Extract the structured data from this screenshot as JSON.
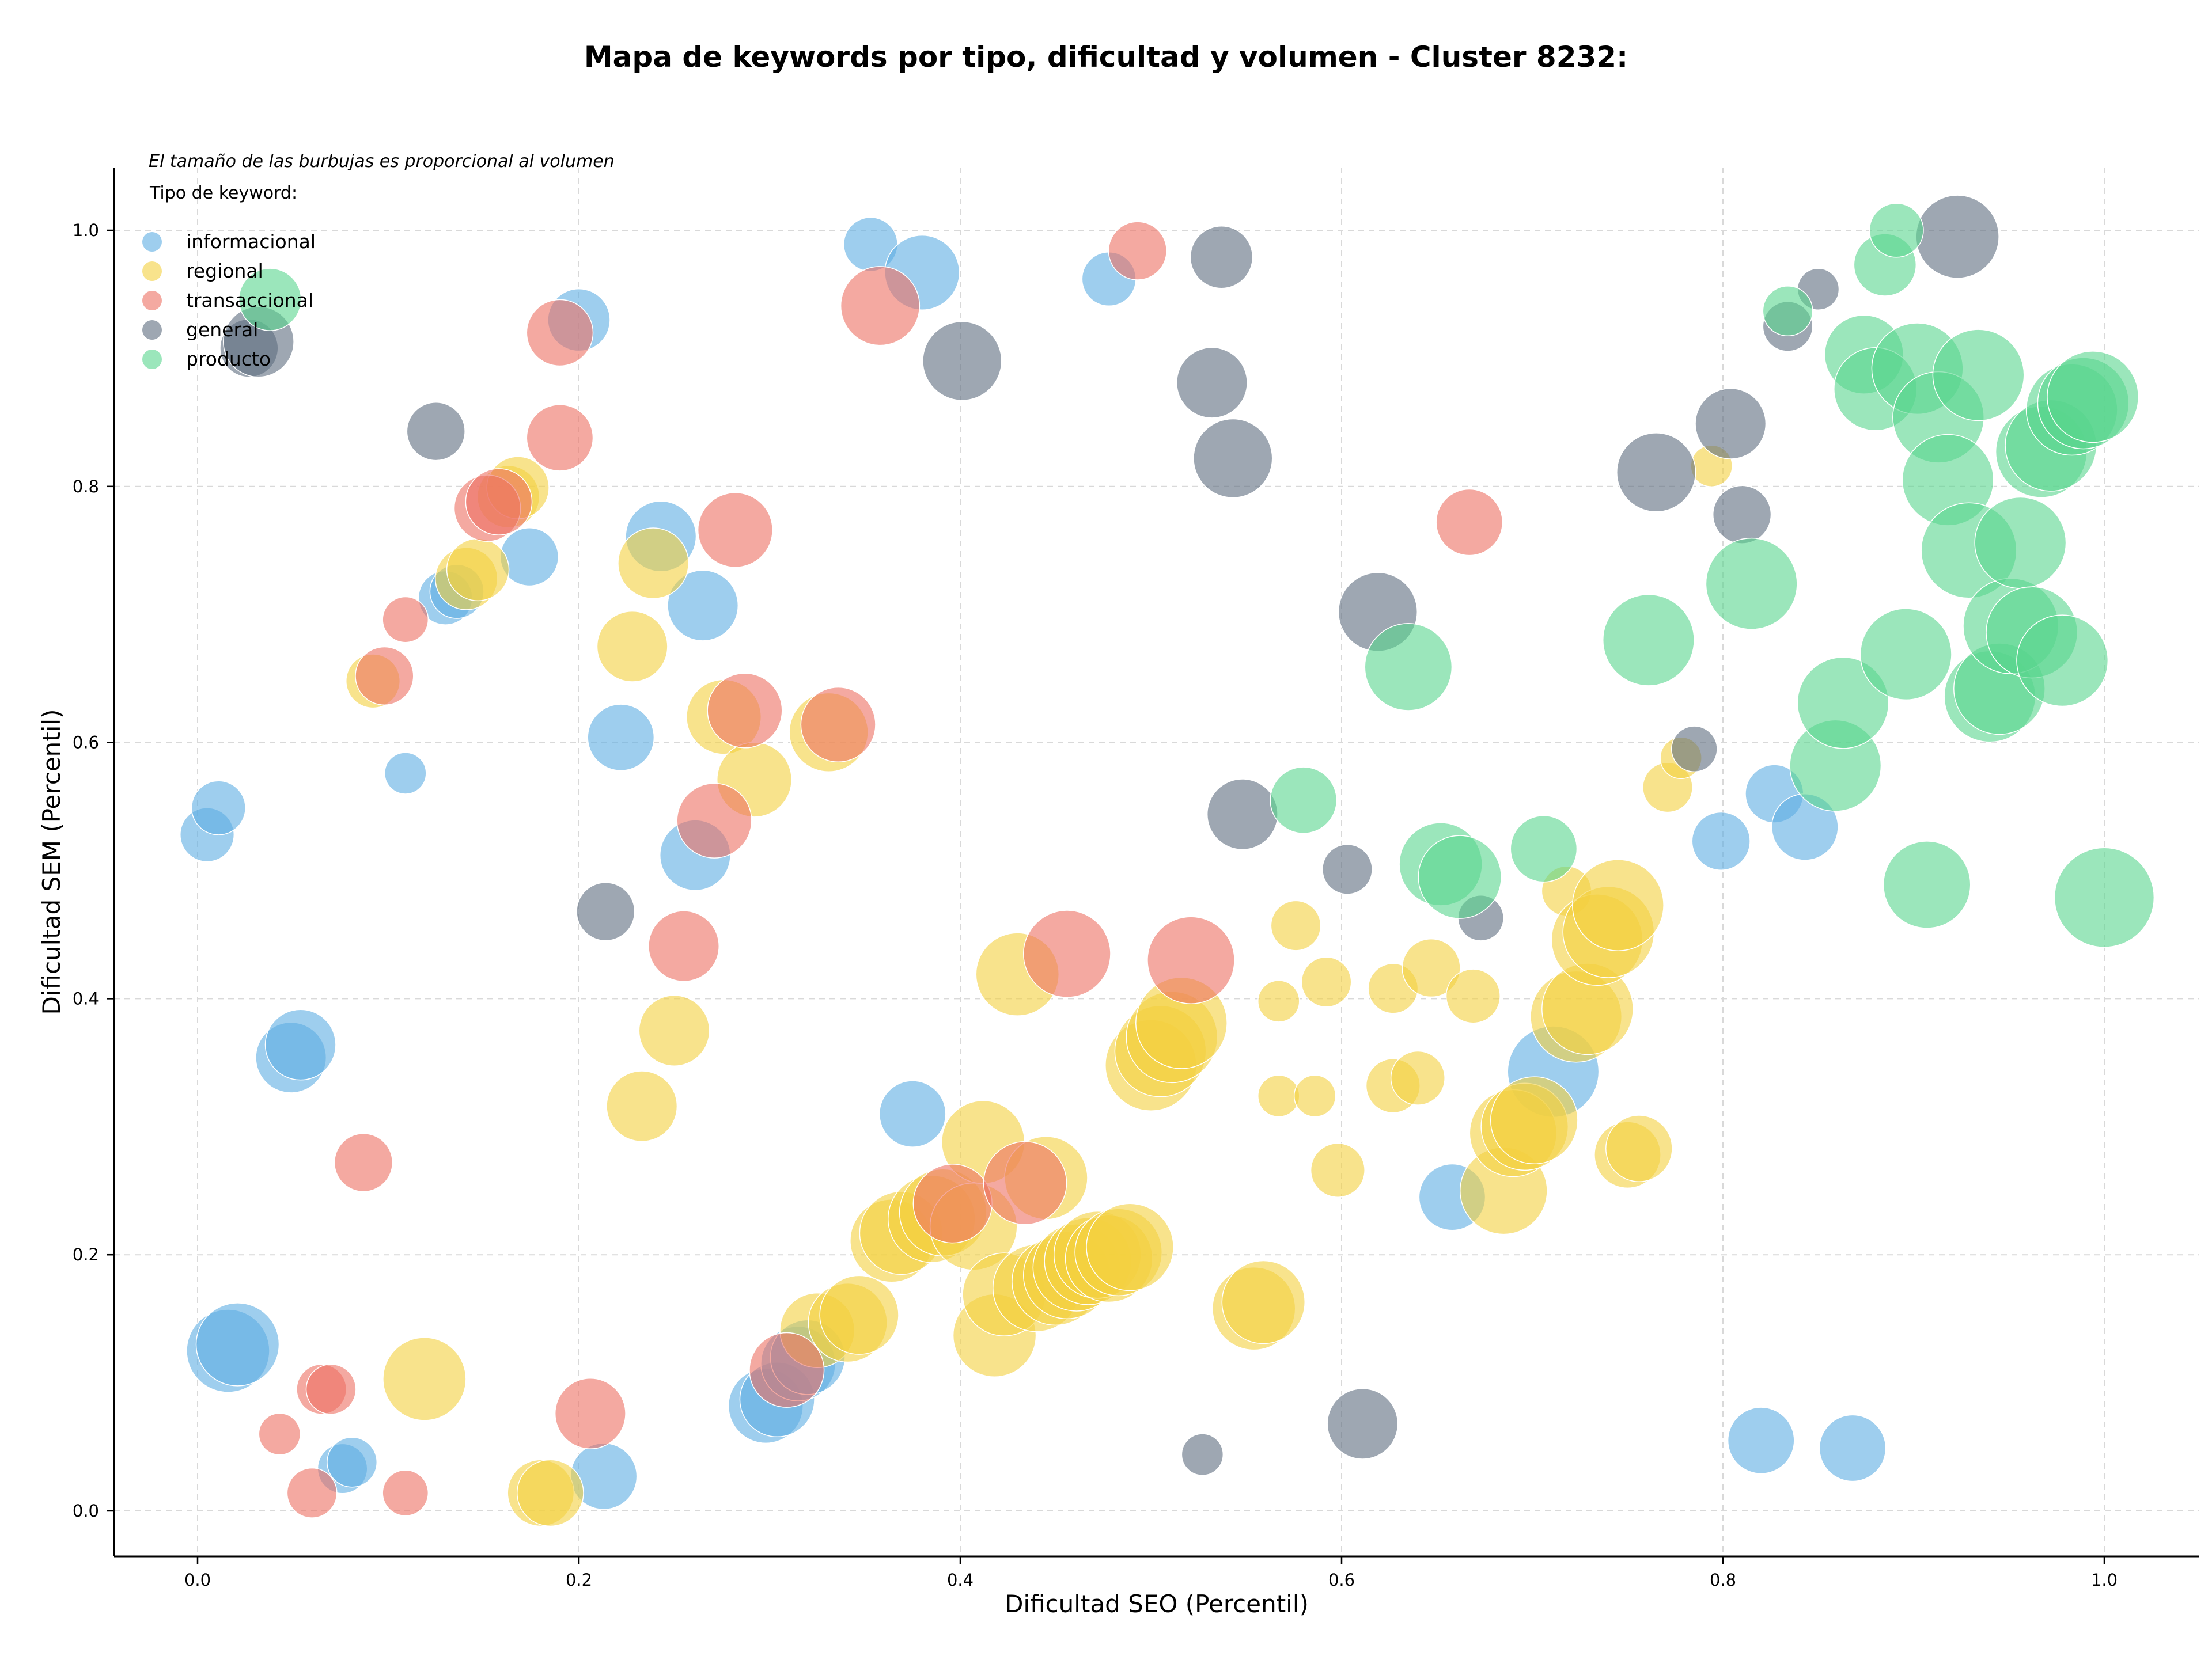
{
  "chart_data": {
    "type": "scatter",
    "title": "Mapa de keywords por tipo, dificultad y volumen - Cluster 8232:",
    "subtitle": "El tamaño de las burbujas es proporcional al volumen",
    "xlabel": "Dificultad SEO (Percentil)",
    "ylabel": "Dificultad SEM (Percentil)",
    "xlim": [
      -0.045,
      1.05
    ],
    "ylim": [
      -0.035,
      1.05
    ],
    "xticks": [
      "0.0",
      "0.2",
      "0.4",
      "0.6",
      "0.8",
      "1.0"
    ],
    "yticks": [
      "0.0",
      "0.2",
      "0.4",
      "0.6",
      "0.8",
      "1.0"
    ],
    "grid": true,
    "legend_title": "Tipo de keyword:",
    "legend_position": "top-left",
    "series": [
      {
        "name": "informacional",
        "color": "#5dade2",
        "points": [
          [
            0.005,
            0.528,
            0.4
          ],
          [
            0.011,
            0.549,
            0.4
          ],
          [
            0.016,
            0.125,
            0.75
          ],
          [
            0.021,
            0.13,
            0.75
          ],
          [
            0.049,
            0.354,
            0.6
          ],
          [
            0.054,
            0.364,
            0.6
          ],
          [
            0.076,
            0.033,
            0.35
          ],
          [
            0.081,
            0.038,
            0.35
          ],
          [
            0.109,
            0.576,
            0.25
          ],
          [
            0.13,
            0.713,
            0.4
          ],
          [
            0.136,
            0.718,
            0.4
          ],
          [
            0.174,
            0.745,
            0.45
          ],
          [
            0.2,
            0.93,
            0.5
          ],
          [
            0.222,
            0.604,
            0.55
          ],
          [
            0.213,
            0.027,
            0.55
          ],
          [
            0.243,
            0.761,
            0.6
          ],
          [
            0.265,
            0.707,
            0.6
          ],
          [
            0.261,
            0.512,
            0.6
          ],
          [
            0.298,
            0.082,
            0.65
          ],
          [
            0.304,
            0.087,
            0.65
          ],
          [
            0.315,
            0.115,
            0.65
          ],
          [
            0.32,
            0.12,
            0.65
          ],
          [
            0.353,
            0.989,
            0.4
          ],
          [
            0.38,
            0.967,
            0.65
          ],
          [
            0.375,
            0.31,
            0.55
          ],
          [
            0.478,
            0.962,
            0.4
          ],
          [
            0.658,
            0.245,
            0.55
          ],
          [
            0.711,
            0.343,
            0.85
          ],
          [
            0.799,
            0.523,
            0.45
          ],
          [
            0.827,
            0.56,
            0.45
          ],
          [
            0.843,
            0.534,
            0.55
          ],
          [
            0.82,
            0.055,
            0.55
          ],
          [
            0.868,
            0.049,
            0.55
          ]
        ]
      },
      {
        "name": "regional",
        "color": "#f4d03f",
        "points": [
          [
            0.092,
            0.648,
            0.4
          ],
          [
            0.119,
            0.103,
            0.75
          ],
          [
            0.141,
            0.728,
            0.5
          ],
          [
            0.147,
            0.735,
            0.5
          ],
          [
            0.163,
            0.792,
            0.5
          ],
          [
            0.168,
            0.799,
            0.5
          ],
          [
            0.18,
            0.014,
            0.55
          ],
          [
            0.185,
            0.014,
            0.55
          ],
          [
            0.228,
            0.675,
            0.6
          ],
          [
            0.233,
            0.316,
            0.6
          ],
          [
            0.239,
            0.74,
            0.6
          ],
          [
            0.25,
            0.375,
            0.6
          ],
          [
            0.276,
            0.62,
            0.65
          ],
          [
            0.292,
            0.571,
            0.65
          ],
          [
            0.331,
            0.608,
            0.7
          ],
          [
            0.325,
            0.141,
            0.65
          ],
          [
            0.341,
            0.147,
            0.7
          ],
          [
            0.347,
            0.153,
            0.7
          ],
          [
            0.364,
            0.211,
            0.75
          ],
          [
            0.369,
            0.217,
            0.75
          ],
          [
            0.385,
            0.228,
            0.8
          ],
          [
            0.391,
            0.233,
            0.8
          ],
          [
            0.407,
            0.222,
            0.8
          ],
          [
            0.412,
            0.288,
            0.75
          ],
          [
            0.418,
            0.137,
            0.75
          ],
          [
            0.423,
            0.169,
            0.75
          ],
          [
            0.43,
            0.419,
            0.75
          ],
          [
            0.44,
            0.174,
            0.8
          ],
          [
            0.445,
            0.26,
            0.75
          ],
          [
            0.45,
            0.179,
            0.8
          ],
          [
            0.456,
            0.184,
            0.8
          ],
          [
            0.461,
            0.19,
            0.8
          ],
          [
            0.467,
            0.195,
            0.8
          ],
          [
            0.472,
            0.2,
            0.8
          ],
          [
            0.478,
            0.197,
            0.8
          ],
          [
            0.483,
            0.202,
            0.8
          ],
          [
            0.489,
            0.206,
            0.8
          ],
          [
            0.5,
            0.348,
            0.85
          ],
          [
            0.505,
            0.359,
            0.85
          ],
          [
            0.511,
            0.37,
            0.85
          ],
          [
            0.516,
            0.381,
            0.85
          ],
          [
            0.554,
            0.158,
            0.75
          ],
          [
            0.559,
            0.163,
            0.75
          ],
          [
            0.567,
            0.324,
            0.25
          ],
          [
            0.567,
            0.398,
            0.25
          ],
          [
            0.576,
            0.457,
            0.35
          ],
          [
            0.586,
            0.324,
            0.25
          ],
          [
            0.592,
            0.413,
            0.35
          ],
          [
            0.598,
            0.266,
            0.4
          ],
          [
            0.627,
            0.408,
            0.35
          ],
          [
            0.627,
            0.332,
            0.4
          ],
          [
            0.64,
            0.338,
            0.4
          ],
          [
            0.647,
            0.424,
            0.45
          ],
          [
            0.685,
            0.25,
            0.8
          ],
          [
            0.669,
            0.402,
            0.4
          ],
          [
            0.69,
            0.295,
            0.8
          ],
          [
            0.696,
            0.3,
            0.8
          ],
          [
            0.701,
            0.305,
            0.8
          ],
          [
            0.718,
            0.484,
            0.35
          ],
          [
            0.723,
            0.386,
            0.85
          ],
          [
            0.729,
            0.392,
            0.85
          ],
          [
            0.734,
            0.446,
            0.85
          ],
          [
            0.74,
            0.452,
            0.85
          ],
          [
            0.745,
            0.473,
            0.85
          ],
          [
            0.75,
            0.278,
            0.55
          ],
          [
            0.756,
            0.283,
            0.55
          ],
          [
            0.771,
            0.565,
            0.35
          ],
          [
            0.778,
            0.588,
            0.25
          ],
          [
            0.794,
            0.816,
            0.25
          ]
        ]
      },
      {
        "name": "transaccional",
        "color": "#ec7063",
        "points": [
          [
            0.043,
            0.06,
            0.25
          ],
          [
            0.06,
            0.014,
            0.35
          ],
          [
            0.065,
            0.095,
            0.35
          ],
          [
            0.07,
            0.095,
            0.35
          ],
          [
            0.087,
            0.272,
            0.45
          ],
          [
            0.098,
            0.652,
            0.45
          ],
          [
            0.109,
            0.014,
            0.3
          ],
          [
            0.109,
            0.696,
            0.3
          ],
          [
            0.152,
            0.783,
            0.55
          ],
          [
            0.158,
            0.788,
            0.55
          ],
          [
            0.19,
            0.838,
            0.55
          ],
          [
            0.19,
            0.92,
            0.55
          ],
          [
            0.206,
            0.076,
            0.6
          ],
          [
            0.255,
            0.441,
            0.6
          ],
          [
            0.271,
            0.539,
            0.65
          ],
          [
            0.282,
            0.766,
            0.65
          ],
          [
            0.287,
            0.625,
            0.65
          ],
          [
            0.309,
            0.11,
            0.65
          ],
          [
            0.336,
            0.614,
            0.65
          ],
          [
            0.358,
            0.941,
            0.7
          ],
          [
            0.396,
            0.24,
            0.7
          ],
          [
            0.434,
            0.256,
            0.75
          ],
          [
            0.456,
            0.435,
            0.8
          ],
          [
            0.521,
            0.43,
            0.8
          ],
          [
            0.493,
            0.984,
            0.45
          ],
          [
            0.667,
            0.772,
            0.55
          ]
        ]
      },
      {
        "name": "general",
        "color": "#5d6d7e",
        "points": [
          [
            0.027,
            0.908,
            0.45
          ],
          [
            0.032,
            0.913,
            0.6
          ],
          [
            0.125,
            0.843,
            0.45
          ],
          [
            0.214,
            0.468,
            0.45
          ],
          [
            0.401,
            0.898,
            0.7
          ],
          [
            0.527,
            0.044,
            0.25
          ],
          [
            0.532,
            0.881,
            0.6
          ],
          [
            0.537,
            0.979,
            0.5
          ],
          [
            0.543,
            0.822,
            0.7
          ],
          [
            0.548,
            0.544,
            0.6
          ],
          [
            0.603,
            0.501,
            0.35
          ],
          [
            0.611,
            0.068,
            0.6
          ],
          [
            0.619,
            0.702,
            0.7
          ],
          [
            0.673,
            0.463,
            0.3
          ],
          [
            0.765,
            0.811,
            0.7
          ],
          [
            0.785,
            0.595,
            0.3
          ],
          [
            0.804,
            0.849,
            0.6
          ],
          [
            0.81,
            0.778,
            0.45
          ],
          [
            0.834,
            0.925,
            0.35
          ],
          [
            0.85,
            0.954,
            0.25
          ],
          [
            0.923,
            0.995,
            0.75
          ]
        ]
      },
      {
        "name": "producto",
        "color": "#58d68d",
        "points": [
          [
            0.038,
            0.946,
            0.5
          ],
          [
            0.58,
            0.555,
            0.55
          ],
          [
            0.635,
            0.659,
            0.8
          ],
          [
            0.652,
            0.505,
            0.75
          ],
          [
            0.662,
            0.495,
            0.75
          ],
          [
            0.706,
            0.517,
            0.55
          ],
          [
            0.761,
            0.68,
            0.85
          ],
          [
            0.815,
            0.724,
            0.85
          ],
          [
            0.834,
            0.937,
            0.35
          ],
          [
            0.859,
            0.582,
            0.85
          ],
          [
            0.863,
            0.631,
            0.85
          ],
          [
            0.874,
            0.903,
            0.7
          ],
          [
            0.88,
            0.876,
            0.75
          ],
          [
            0.885,
            0.973,
            0.5
          ],
          [
            0.891,
            1.0,
            0.4
          ],
          [
            0.896,
            0.669,
            0.85
          ],
          [
            0.902,
            0.892,
            0.85
          ],
          [
            0.907,
            0.489,
            0.8
          ],
          [
            0.913,
            0.854,
            0.85
          ],
          [
            0.918,
            0.805,
            0.85
          ],
          [
            0.929,
            0.75,
            0.9
          ],
          [
            0.934,
            0.887,
            0.85
          ],
          [
            0.94,
            0.636,
            0.85
          ],
          [
            0.945,
            0.642,
            0.85
          ],
          [
            0.951,
            0.691,
            0.9
          ],
          [
            0.956,
            0.756,
            0.85
          ],
          [
            0.962,
            0.686,
            0.85
          ],
          [
            0.967,
            0.827,
            0.85
          ],
          [
            0.972,
            0.832,
            0.85
          ],
          [
            0.978,
            0.664,
            0.85
          ],
          [
            0.983,
            0.86,
            0.85
          ],
          [
            0.989,
            0.865,
            0.85
          ],
          [
            0.994,
            0.87,
            0.85
          ],
          [
            1.0,
            0.479,
            0.95
          ]
        ]
      }
    ]
  }
}
